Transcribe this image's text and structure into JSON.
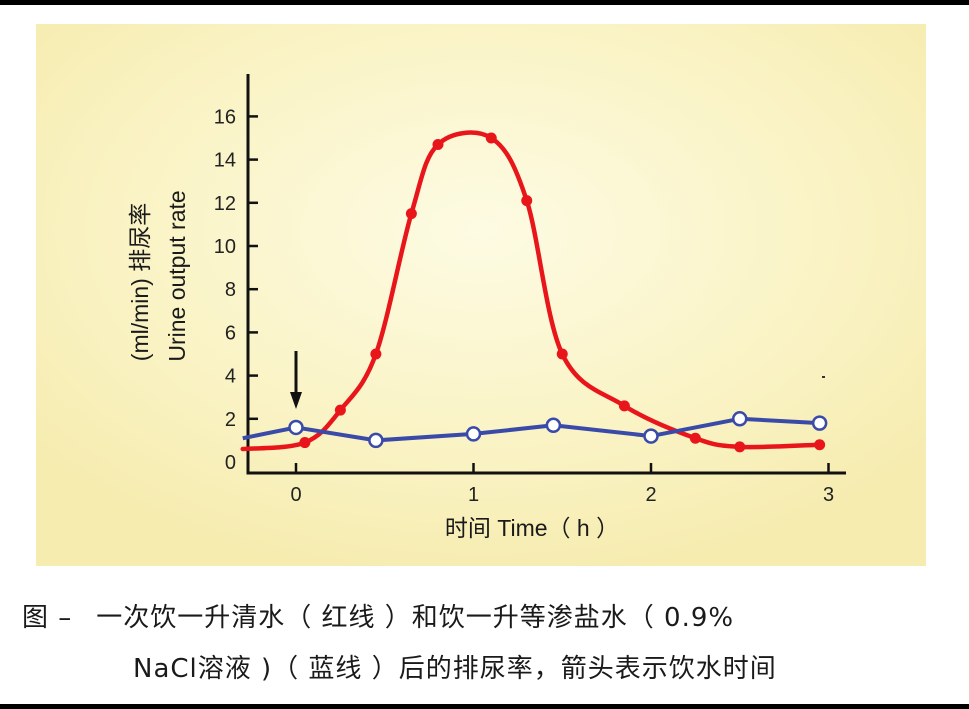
{
  "chart_data": {
    "type": "line",
    "ylabel_cn": "排尿率 (ml/min)",
    "ylabel_cn_main": "排尿率",
    "ylabel_unit": "(ml/min)",
    "ylabel_en": "Urine output rate",
    "xlabel": "时间  Time（ h ）",
    "xlim": [
      -0.3,
      3.1
    ],
    "ylim": [
      0,
      17
    ],
    "x_ticks": [
      0,
      1,
      2,
      3
    ],
    "y_ticks": [
      0,
      2,
      4,
      6,
      8,
      10,
      12,
      14,
      16
    ],
    "arrow_at_x": 0,
    "series": [
      {
        "name": "一升清水（红线）",
        "color": "#e8161b",
        "marker": "filled",
        "x": [
          -0.3,
          0.05,
          0.25,
          0.45,
          0.65,
          0.8,
          1.1,
          1.3,
          1.5,
          1.85,
          2.25,
          2.5,
          2.95
        ],
        "y": [
          0.6,
          0.9,
          2.4,
          5.0,
          11.5,
          14.7,
          15.0,
          12.1,
          5.0,
          2.6,
          1.1,
          0.7,
          0.8
        ]
      },
      {
        "name": "一升等渗盐水（蓝线）",
        "color": "#3a4aa8",
        "marker": "open",
        "x": [
          -0.3,
          0.0,
          0.45,
          1.0,
          1.45,
          2.0,
          2.5,
          2.95
        ],
        "y": [
          1.1,
          1.6,
          1.0,
          1.3,
          1.7,
          1.2,
          2.0,
          1.8
        ]
      }
    ]
  },
  "caption": {
    "prefix": "图  –",
    "line1": "一次饮一升清水（ 红线 ）和饮一升等渗盐水（  0.9%",
    "line2": "NaCl溶液 )（ 蓝线 ）后的排尿率，箭头表示饮水时间"
  }
}
